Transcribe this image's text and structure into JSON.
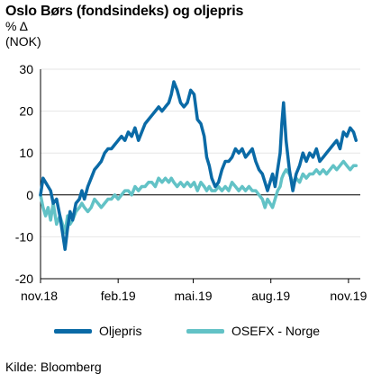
{
  "header": {
    "title": "Oslo Børs (fondsindeks) og oljepris",
    "unit_line1": "% Δ",
    "unit_line2": "(NOK)"
  },
  "source": "Kilde: Bloomberg",
  "colors": {
    "oil": "#0a6aa6",
    "osefx": "#62c2c6",
    "axis": "#000000",
    "grid": "#e6e6e6"
  },
  "chart_data": {
    "type": "line",
    "title": "Oslo Børs (fondsindeks) og oljepris",
    "ylabel": "% Δ (NOK)",
    "ylim": [
      -20,
      30
    ],
    "yticks": [
      -20,
      -10,
      0,
      10,
      20,
      30
    ],
    "ytick_labels": [
      "-20",
      "-10",
      "0",
      "10",
      "20",
      "30"
    ],
    "xlim": [
      "2018-11-01",
      "2019-11-15"
    ],
    "xticks": [
      "2018-11-01",
      "2019-02-01",
      "2019-05-01",
      "2019-08-01",
      "2019-11-01"
    ],
    "xtick_labels": [
      "nov.18",
      "feb.19",
      "mai.19",
      "aug.19",
      "nov.19"
    ],
    "legend_position": "bottom",
    "series": [
      {
        "name": "Oljepris",
        "color": "#0a6aa6",
        "points": [
          [
            "2018-11-01",
            0
          ],
          [
            "2018-11-04",
            4
          ],
          [
            "2018-11-07",
            3
          ],
          [
            "2018-11-10",
            2
          ],
          [
            "2018-11-13",
            1
          ],
          [
            "2018-11-16",
            -2
          ],
          [
            "2018-11-20",
            -1
          ],
          [
            "2018-11-24",
            -5
          ],
          [
            "2018-11-27",
            -9
          ],
          [
            "2018-11-30",
            -13
          ],
          [
            "2018-12-03",
            -8
          ],
          [
            "2018-12-06",
            -4
          ],
          [
            "2018-12-09",
            -6
          ],
          [
            "2018-12-13",
            -2
          ],
          [
            "2018-12-17",
            -1
          ],
          [
            "2018-12-20",
            1
          ],
          [
            "2018-12-23",
            -1
          ],
          [
            "2018-12-27",
            2
          ],
          [
            "2018-12-31",
            4
          ],
          [
            "2019-01-04",
            6
          ],
          [
            "2019-01-08",
            7
          ],
          [
            "2019-01-12",
            8
          ],
          [
            "2019-01-16",
            10
          ],
          [
            "2019-01-20",
            11
          ],
          [
            "2019-01-24",
            11
          ],
          [
            "2019-01-28",
            12
          ],
          [
            "2019-02-01",
            13
          ],
          [
            "2019-02-05",
            14
          ],
          [
            "2019-02-09",
            13
          ],
          [
            "2019-02-13",
            15
          ],
          [
            "2019-02-17",
            14
          ],
          [
            "2019-02-21",
            16
          ],
          [
            "2019-02-25",
            13
          ],
          [
            "2019-03-01",
            15
          ],
          [
            "2019-03-05",
            17
          ],
          [
            "2019-03-09",
            18
          ],
          [
            "2019-03-13",
            19
          ],
          [
            "2019-03-17",
            20
          ],
          [
            "2019-03-21",
            21
          ],
          [
            "2019-03-25",
            20
          ],
          [
            "2019-03-29",
            21
          ],
          [
            "2019-04-02",
            22
          ],
          [
            "2019-04-05",
            24
          ],
          [
            "2019-04-08",
            27
          ],
          [
            "2019-04-12",
            25
          ],
          [
            "2019-04-16",
            22
          ],
          [
            "2019-04-20",
            21
          ],
          [
            "2019-04-24",
            22
          ],
          [
            "2019-04-28",
            25
          ],
          [
            "2019-05-02",
            24
          ],
          [
            "2019-05-06",
            18
          ],
          [
            "2019-05-10",
            17
          ],
          [
            "2019-05-14",
            14
          ],
          [
            "2019-05-17",
            9
          ],
          [
            "2019-05-20",
            7
          ],
          [
            "2019-05-23",
            4
          ],
          [
            "2019-05-27",
            2
          ],
          [
            "2019-05-31",
            3
          ],
          [
            "2019-06-04",
            6
          ],
          [
            "2019-06-08",
            8
          ],
          [
            "2019-06-12",
            8
          ],
          [
            "2019-06-16",
            9
          ],
          [
            "2019-06-20",
            11
          ],
          [
            "2019-06-24",
            10
          ],
          [
            "2019-06-28",
            11
          ],
          [
            "2019-07-02",
            9
          ],
          [
            "2019-07-06",
            10
          ],
          [
            "2019-07-10",
            11
          ],
          [
            "2019-07-14",
            8
          ],
          [
            "2019-07-18",
            6
          ],
          [
            "2019-07-22",
            5
          ],
          [
            "2019-07-25",
            3
          ],
          [
            "2019-07-28",
            1
          ],
          [
            "2019-07-31",
            3
          ],
          [
            "2019-08-03",
            5
          ],
          [
            "2019-08-06",
            2
          ],
          [
            "2019-08-09",
            6
          ],
          [
            "2019-08-12",
            10
          ],
          [
            "2019-08-14",
            17
          ],
          [
            "2019-08-16",
            22
          ],
          [
            "2019-08-19",
            13
          ],
          [
            "2019-08-23",
            6
          ],
          [
            "2019-08-27",
            1
          ],
          [
            "2019-08-31",
            5
          ],
          [
            "2019-09-04",
            7
          ],
          [
            "2019-09-08",
            10
          ],
          [
            "2019-09-12",
            8
          ],
          [
            "2019-09-16",
            10
          ],
          [
            "2019-09-20",
            9
          ],
          [
            "2019-09-24",
            11
          ],
          [
            "2019-09-28",
            8
          ],
          [
            "2019-10-02",
            9
          ],
          [
            "2019-10-06",
            10
          ],
          [
            "2019-10-10",
            11
          ],
          [
            "2019-10-14",
            12
          ],
          [
            "2019-10-18",
            13
          ],
          [
            "2019-10-22",
            11
          ],
          [
            "2019-10-26",
            15
          ],
          [
            "2019-10-30",
            14
          ],
          [
            "2019-11-03",
            16
          ],
          [
            "2019-11-07",
            15
          ],
          [
            "2019-11-10",
            13
          ]
        ]
      },
      {
        "name": "OSEFX - Norge",
        "color": "#62c2c6",
        "points": [
          [
            "2018-11-01",
            0
          ],
          [
            "2018-11-04",
            -3
          ],
          [
            "2018-11-07",
            -5
          ],
          [
            "2018-11-10",
            -3
          ],
          [
            "2018-11-13",
            -6
          ],
          [
            "2018-11-16",
            -2
          ],
          [
            "2018-11-20",
            -7
          ],
          [
            "2018-11-24",
            -5
          ],
          [
            "2018-11-27",
            -7
          ],
          [
            "2018-11-30",
            -9
          ],
          [
            "2018-12-03",
            -5
          ],
          [
            "2018-12-06",
            -7
          ],
          [
            "2018-12-09",
            -6
          ],
          [
            "2018-12-13",
            -4
          ],
          [
            "2018-12-17",
            -3
          ],
          [
            "2018-12-20",
            -2
          ],
          [
            "2018-12-23",
            -3
          ],
          [
            "2018-12-27",
            -4
          ],
          [
            "2018-12-31",
            -3
          ],
          [
            "2019-01-04",
            -1
          ],
          [
            "2019-01-08",
            -2
          ],
          [
            "2019-01-12",
            -3
          ],
          [
            "2019-01-16",
            -2
          ],
          [
            "2019-01-20",
            -1
          ],
          [
            "2019-01-24",
            -1
          ],
          [
            "2019-01-28",
            0
          ],
          [
            "2019-02-01",
            -1
          ],
          [
            "2019-02-05",
            0
          ],
          [
            "2019-02-09",
            1
          ],
          [
            "2019-02-13",
            1
          ],
          [
            "2019-02-17",
            0
          ],
          [
            "2019-02-21",
            2
          ],
          [
            "2019-02-25",
            1
          ],
          [
            "2019-03-01",
            2
          ],
          [
            "2019-03-05",
            2
          ],
          [
            "2019-03-09",
            3
          ],
          [
            "2019-03-13",
            3
          ],
          [
            "2019-03-17",
            2
          ],
          [
            "2019-03-21",
            4
          ],
          [
            "2019-03-25",
            3
          ],
          [
            "2019-03-29",
            4
          ],
          [
            "2019-04-02",
            3
          ],
          [
            "2019-04-05",
            4
          ],
          [
            "2019-04-08",
            3
          ],
          [
            "2019-04-12",
            2
          ],
          [
            "2019-04-16",
            3
          ],
          [
            "2019-04-20",
            2
          ],
          [
            "2019-04-24",
            3
          ],
          [
            "2019-04-28",
            2
          ],
          [
            "2019-05-02",
            3
          ],
          [
            "2019-05-06",
            1
          ],
          [
            "2019-05-10",
            3
          ],
          [
            "2019-05-14",
            2
          ],
          [
            "2019-05-17",
            1
          ],
          [
            "2019-05-20",
            2
          ],
          [
            "2019-05-23",
            1
          ],
          [
            "2019-05-27",
            1
          ],
          [
            "2019-05-31",
            2
          ],
          [
            "2019-06-04",
            1
          ],
          [
            "2019-06-08",
            2
          ],
          [
            "2019-06-12",
            1
          ],
          [
            "2019-06-16",
            3
          ],
          [
            "2019-06-20",
            2
          ],
          [
            "2019-06-24",
            1
          ],
          [
            "2019-06-28",
            2
          ],
          [
            "2019-07-02",
            1
          ],
          [
            "2019-07-06",
            2
          ],
          [
            "2019-07-10",
            1
          ],
          [
            "2019-07-14",
            1
          ],
          [
            "2019-07-18",
            0
          ],
          [
            "2019-07-22",
            -1
          ],
          [
            "2019-07-25",
            -3
          ],
          [
            "2019-07-28",
            -1
          ],
          [
            "2019-07-31",
            -2
          ],
          [
            "2019-08-03",
            -3
          ],
          [
            "2019-08-06",
            -1
          ],
          [
            "2019-08-09",
            1
          ],
          [
            "2019-08-12",
            2
          ],
          [
            "2019-08-14",
            4
          ],
          [
            "2019-08-16",
            5
          ],
          [
            "2019-08-19",
            6
          ],
          [
            "2019-08-23",
            5
          ],
          [
            "2019-08-27",
            3
          ],
          [
            "2019-08-31",
            4
          ],
          [
            "2019-09-04",
            3
          ],
          [
            "2019-09-08",
            5
          ],
          [
            "2019-09-12",
            4
          ],
          [
            "2019-09-16",
            5
          ],
          [
            "2019-09-20",
            5
          ],
          [
            "2019-09-24",
            6
          ],
          [
            "2019-09-28",
            5
          ],
          [
            "2019-10-02",
            6
          ],
          [
            "2019-10-06",
            5
          ],
          [
            "2019-10-10",
            6
          ],
          [
            "2019-10-14",
            7
          ],
          [
            "2019-10-18",
            6
          ],
          [
            "2019-10-22",
            7
          ],
          [
            "2019-10-26",
            8
          ],
          [
            "2019-10-30",
            7
          ],
          [
            "2019-11-03",
            6
          ],
          [
            "2019-11-07",
            7
          ],
          [
            "2019-11-10",
            7
          ]
        ]
      }
    ]
  }
}
